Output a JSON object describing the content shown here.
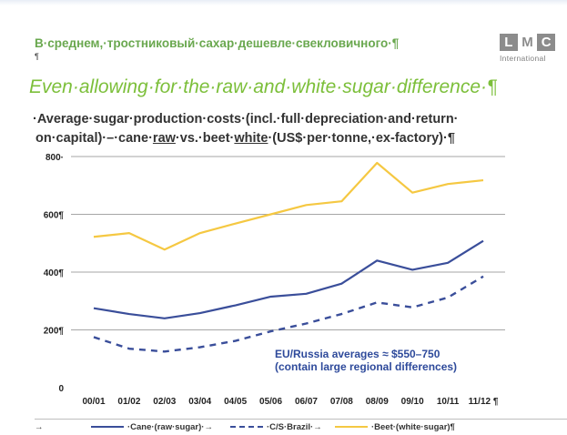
{
  "header": {
    "russian_title": "В·среднем,·тростниковый·сахар·дешевле·свекловичного·¶",
    "mark": "¶",
    "logo_letters": [
      "L",
      "M",
      "C"
    ],
    "logo_sub": "International",
    "subtitle": "Even·allowing·for·the·raw·and·white·sugar·difference·¶"
  },
  "chart_title": {
    "line1": "·Average·sugar·production·costs·(incl.·full·depreciation·and·return·",
    "line2_pre": "on·capital)·–·cane·",
    "line2_raw": "raw",
    "line2_mid": "·vs.·beet·",
    "line2_white": "white",
    "line2_post": "·(US$·per·tonne,·ex-factory)·¶"
  },
  "annotation": {
    "line1": "EU/Russia averages ≈ $550–750",
    "line2": "(contain large regional differences)"
  },
  "legend": {
    "arrow": "→",
    "cane": "·Cane·(raw·sugar)·→",
    "brazil": "·C/S·Brazil·→",
    "beet": "·Beet·(white·sugar)¶"
  },
  "colors": {
    "cane": "#3a4e9a",
    "brazil": "#3a4e9a",
    "beet": "#f5c842",
    "grid": "#a6a6a6"
  },
  "chart_data": {
    "type": "line",
    "title": "Average sugar production costs (incl. full depreciation and return on capital) – cane raw vs. beet white (US$ per tonne, ex-factory)",
    "xlabel": "",
    "ylabel": "",
    "categories": [
      "00/01",
      "01/02",
      "02/03",
      "03/04",
      "04/05",
      "05/06",
      "06/07",
      "07/08",
      "08/09",
      "09/10",
      "10/11",
      "11/12"
    ],
    "y_ticks": [
      "0",
      "200¶",
      "400¶",
      "600¶",
      "800·"
    ],
    "x_tick_suffix": "¶",
    "ylim": [
      0,
      800
    ],
    "grid": true,
    "legend_position": "bottom",
    "series": [
      {
        "name": "Cane (raw sugar)",
        "style": "solid",
        "values": [
          275,
          255,
          240,
          258,
          285,
          315,
          325,
          360,
          440,
          408,
          432,
          508
        ]
      },
      {
        "name": "C/S Brazil",
        "style": "dashed",
        "values": [
          175,
          135,
          125,
          140,
          162,
          195,
          222,
          255,
          295,
          278,
          312,
          385
        ]
      },
      {
        "name": "Beet (white sugar)",
        "style": "solid",
        "values": [
          522,
          535,
          478,
          535,
          568,
          600,
          632,
          645,
          778,
          675,
          705,
          718
        ]
      }
    ]
  }
}
